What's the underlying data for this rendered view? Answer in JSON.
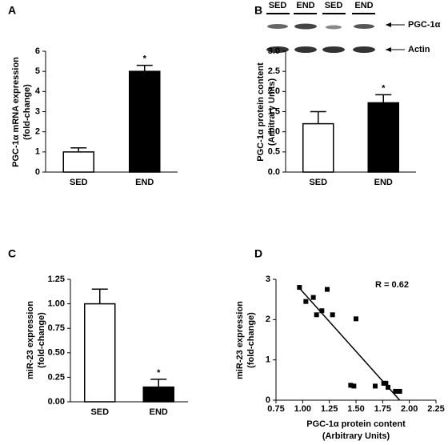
{
  "chart_data": [
    {
      "type": "bar",
      "panel": "A",
      "categories": [
        "SED",
        "END"
      ],
      "values": [
        1.0,
        5.0
      ],
      "errors": [
        0.2,
        0.3
      ],
      "colors": [
        "#ffffff",
        "#000000"
      ],
      "ylabel": [
        "PGC-1α mRNA expression",
        "(fold-change)"
      ],
      "ylim": [
        0,
        6
      ],
      "yticks": [
        0,
        1,
        2,
        3,
        4,
        5,
        6
      ],
      "annotations": [
        null,
        "*"
      ]
    },
    {
      "type": "bar",
      "panel": "B",
      "categories": [
        "SED",
        "END"
      ],
      "values": [
        1.2,
        1.72
      ],
      "errors": [
        0.3,
        0.2
      ],
      "colors": [
        "#ffffff",
        "#000000"
      ],
      "ylabel": [
        "PGC-1α protein content",
        "(Arbitrary Units)"
      ],
      "ylim": [
        0,
        3
      ],
      "yticks": [
        {
          "value": 0,
          "label": "0.0"
        },
        0.5,
        {
          "value": 1,
          "label": "1.0"
        },
        1.5,
        {
          "value": 2,
          "label": "2.0"
        },
        2.5,
        {
          "value": 3,
          "label": "3.0"
        }
      ],
      "annotations": [
        null,
        "*"
      ],
      "blot": {
        "lanes": [
          "SED",
          "END",
          "SED",
          "END"
        ],
        "bands": [
          "PGC-1α",
          "Actin"
        ]
      }
    },
    {
      "type": "bar",
      "panel": "C",
      "categories": [
        "SED",
        "END"
      ],
      "values": [
        1.0,
        0.15
      ],
      "errors": [
        0.15,
        0.08
      ],
      "colors": [
        "#ffffff",
        "#000000"
      ],
      "ylabel": [
        "miR-23 expression",
        "(fold-change)"
      ],
      "ylim": [
        0,
        1.25
      ],
      "yticks": [
        {
          "value": 0,
          "label": "0.00"
        },
        0.25,
        {
          "value": 0.5,
          "label": "0.50"
        },
        0.75,
        {
          "value": 1,
          "label": "1.00"
        },
        1.25
      ],
      "annotations": [
        null,
        "*"
      ]
    },
    {
      "type": "scatter",
      "panel": "D",
      "x": [
        0.97,
        1.03,
        1.1,
        1.13,
        1.18,
        1.23,
        1.28,
        1.45,
        1.48,
        1.5,
        1.68,
        1.76,
        1.78,
        1.8,
        1.87,
        1.91
      ],
      "values": [
        2.8,
        2.45,
        2.55,
        2.12,
        2.22,
        2.75,
        2.12,
        0.37,
        0.35,
        2.02,
        0.35,
        0.42,
        0.42,
        0.32,
        0.22,
        0.22
      ],
      "color": "#000000",
      "fit": {
        "x": [
          0.97,
          1.91
        ],
        "y": [
          2.78,
          0
        ]
      },
      "xlabel": [
        "PGC-1α protein content",
        "(Arbitrary Units)"
      ],
      "ylabel": [
        "miR-23 expression",
        "(fold-change)"
      ],
      "xlim": [
        0.75,
        2.25
      ],
      "xticks": [
        0.75,
        {
          "value": 1,
          "label": "1.00"
        },
        1.25,
        {
          "value": 1.5,
          "label": "1.50"
        },
        1.75,
        {
          "value": 2,
          "label": "2.00"
        },
        2.25
      ],
      "ylim": [
        0,
        3
      ],
      "yticks": [
        0,
        1,
        2,
        3
      ],
      "annotation": "R = 0.62"
    }
  ]
}
